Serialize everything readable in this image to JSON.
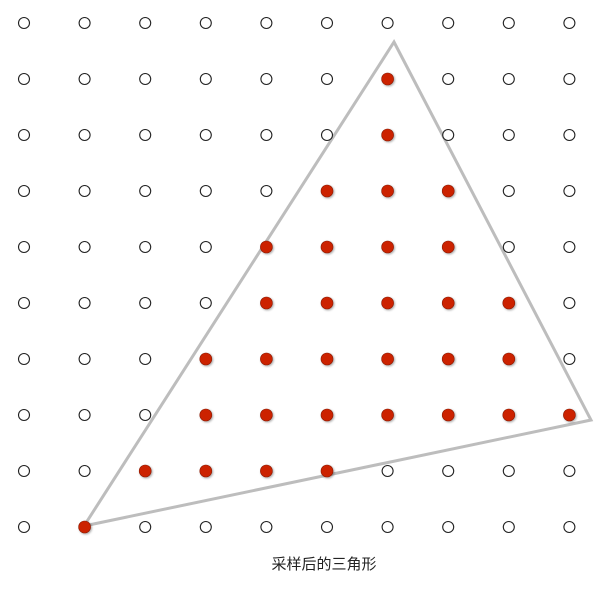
{
  "caption": "采样后的三角形",
  "grid": {
    "columns": 10,
    "rows": 10,
    "covered_samples": [
      [
        6,
        1
      ],
      [
        6,
        2
      ],
      [
        5,
        3
      ],
      [
        6,
        3
      ],
      [
        7,
        3
      ],
      [
        4,
        4
      ],
      [
        5,
        4
      ],
      [
        6,
        4
      ],
      [
        7,
        4
      ],
      [
        4,
        5
      ],
      [
        5,
        5
      ],
      [
        6,
        5
      ],
      [
        7,
        5
      ],
      [
        8,
        5
      ],
      [
        3,
        6
      ],
      [
        4,
        6
      ],
      [
        5,
        6
      ],
      [
        6,
        6
      ],
      [
        7,
        6
      ],
      [
        8,
        6
      ],
      [
        3,
        7
      ],
      [
        4,
        7
      ],
      [
        5,
        7
      ],
      [
        6,
        7
      ],
      [
        7,
        7
      ],
      [
        8,
        7
      ],
      [
        9,
        7
      ],
      [
        2,
        8
      ],
      [
        3,
        8
      ],
      [
        4,
        8
      ],
      [
        5,
        8
      ],
      [
        1,
        9
      ]
    ]
  },
  "colors": {
    "covered_fill": "#cc2200",
    "empty_stroke": "#222222",
    "triangle_stroke": "#bdbdbd"
  }
}
